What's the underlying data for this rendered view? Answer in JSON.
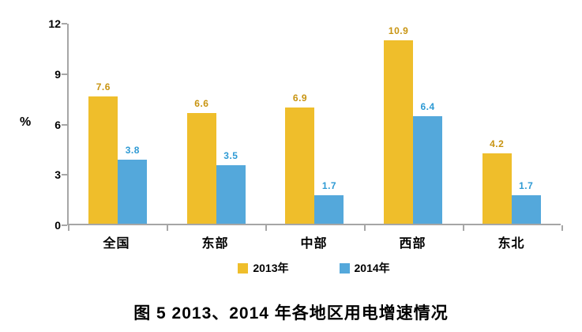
{
  "chart_data": {
    "type": "bar",
    "categories": [
      "全国",
      "东部",
      "中部",
      "西部",
      "东北"
    ],
    "series": [
      {
        "name": "2013年",
        "color": "#EFBE2B",
        "label_color": "#C89411",
        "values": [
          7.6,
          6.6,
          6.9,
          10.9,
          4.2
        ]
      },
      {
        "name": "2014年",
        "color": "#54A8DB",
        "label_color": "#2E9AD4",
        "values": [
          3.8,
          3.5,
          1.7,
          6.4,
          1.7
        ]
      }
    ],
    "title": "",
    "xlabel": "",
    "ylabel": "%",
    "ylim": [
      0,
      12
    ],
    "yticks": [
      0,
      3,
      6,
      9,
      12
    ],
    "grid": false,
    "legend_position": "bottom",
    "value_labels": true
  },
  "caption": "图 5  2013、2014 年各地区用电增速情况",
  "colors": {
    "axis": "#A6A6A6",
    "text": "#000000",
    "background": "#FFFFFF"
  }
}
